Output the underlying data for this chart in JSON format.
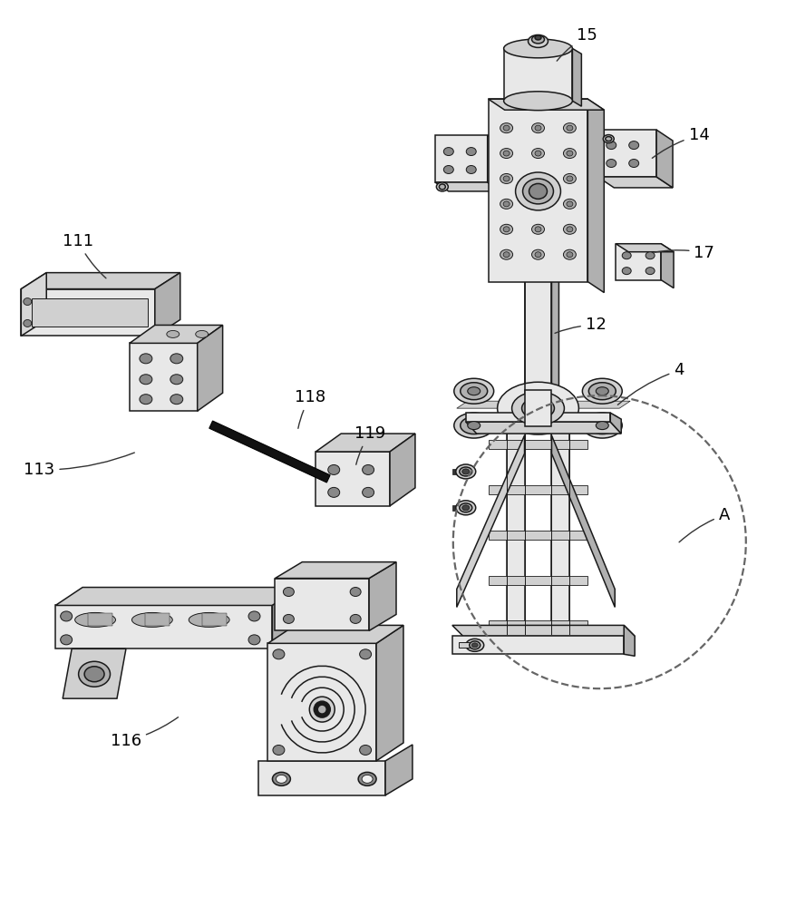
{
  "bg_color": "#ffffff",
  "line_color": "#1a1a1a",
  "figsize": [
    8.79,
    10.0
  ],
  "dpi": 100,
  "annotations": [
    {
      "label": "15",
      "txy": [
        648,
        38
      ],
      "axy": [
        613,
        68
      ]
    },
    {
      "label": "14",
      "txy": [
        772,
        148
      ],
      "axy": [
        718,
        175
      ]
    },
    {
      "label": "17",
      "txy": [
        778,
        278
      ],
      "axy": [
        720,
        278
      ]
    },
    {
      "label": "12",
      "txy": [
        658,
        358
      ],
      "axy": [
        610,
        368
      ]
    },
    {
      "label": "4",
      "txy": [
        750,
        408
      ],
      "axy": [
        680,
        448
      ]
    },
    {
      "label": "A",
      "txy": [
        800,
        568
      ],
      "axy": [
        748,
        600
      ]
    },
    {
      "label": "111",
      "txy": [
        85,
        265
      ],
      "axy": [
        118,
        308
      ]
    },
    {
      "label": "113",
      "txy": [
        42,
        518
      ],
      "axy": [
        150,
        498
      ]
    },
    {
      "label": "118",
      "txy": [
        342,
        438
      ],
      "axy": [
        328,
        475
      ]
    },
    {
      "label": "119",
      "txy": [
        408,
        478
      ],
      "axy": [
        392,
        515
      ]
    },
    {
      "label": "116",
      "txy": [
        138,
        818
      ],
      "axy": [
        198,
        790
      ]
    }
  ]
}
